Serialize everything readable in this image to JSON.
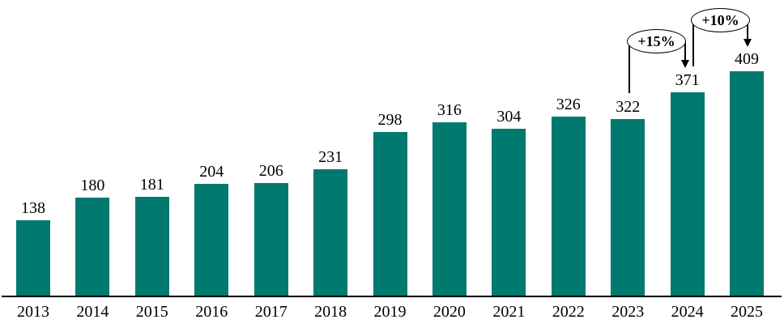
{
  "chart_data": {
    "type": "bar",
    "title": "",
    "xlabel": "",
    "ylabel": "",
    "categories": [
      "2013",
      "2014",
      "2015",
      "2016",
      "2017",
      "2018",
      "2019",
      "2020",
      "2021",
      "2022",
      "2023",
      "2024",
      "2025"
    ],
    "values": [
      138,
      180,
      181,
      204,
      206,
      231,
      298,
      316,
      304,
      326,
      322,
      371,
      409
    ],
    "ylim": [
      0,
      440
    ],
    "grid": false,
    "legend_position": "none",
    "bar_color": "#00796F",
    "axis_color": "#000000",
    "text_color": "#000000",
    "annotations": [
      {
        "label": "+15%",
        "from_category": "2023",
        "to_category": "2024"
      },
      {
        "label": "+10%",
        "from_category": "2024",
        "to_category": "2025"
      }
    ]
  }
}
